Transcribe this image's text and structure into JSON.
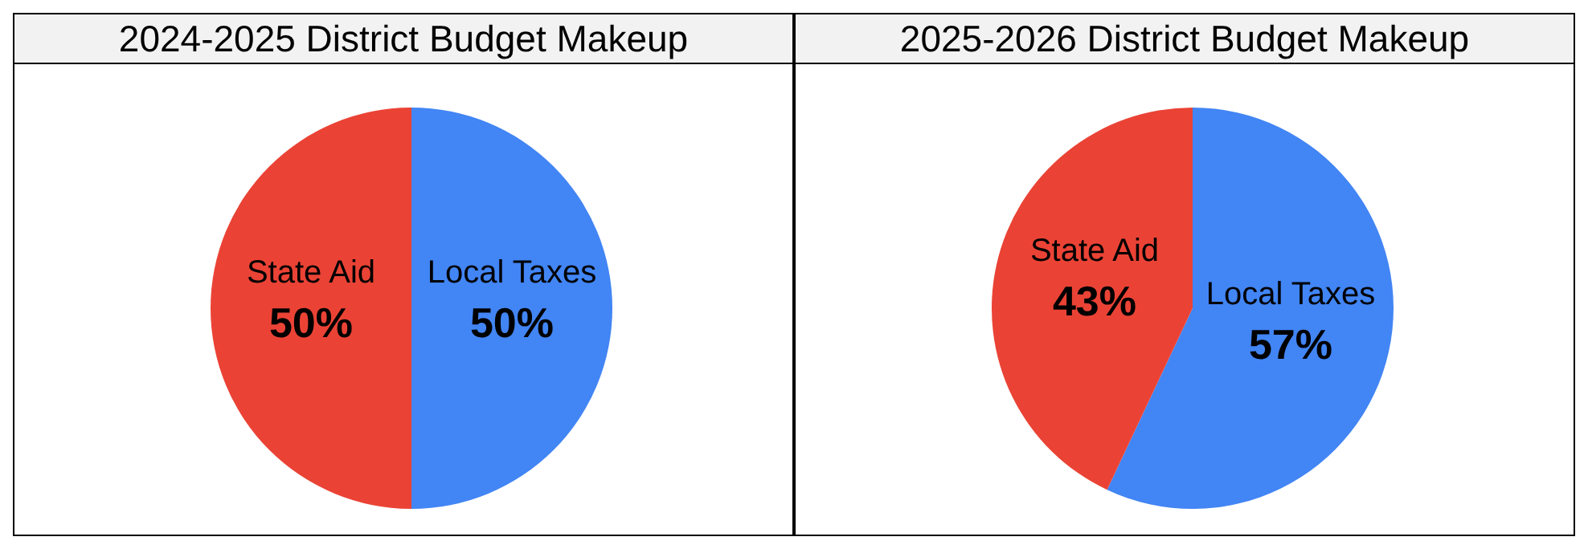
{
  "chart_data": [
    {
      "type": "pie",
      "title": "2024-2025 District Budget Makeup",
      "categories": [
        "Local Taxes",
        "State Aid"
      ],
      "values": [
        50,
        50
      ],
      "colors": [
        "#4285f4",
        "#ea4335"
      ],
      "value_labels": [
        "50%",
        "50%"
      ]
    },
    {
      "type": "pie",
      "title": "2025-2026 District Budget Makeup",
      "categories": [
        "Local Taxes",
        "State Aid"
      ],
      "values": [
        57,
        43
      ],
      "colors": [
        "#4285f4",
        "#ea4335"
      ],
      "value_labels": [
        "57%",
        "43%"
      ]
    }
  ]
}
